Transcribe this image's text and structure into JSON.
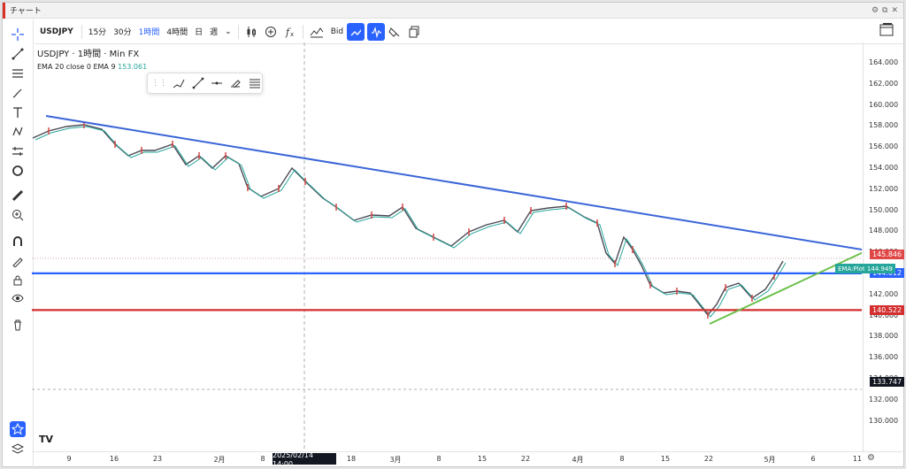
{
  "window": {
    "title": "チャート",
    "buttons": [
      "⚙",
      "⧉",
      "✕"
    ]
  },
  "toolbar": {
    "symbol": "USDJPY",
    "intervals": [
      {
        "label": "15分",
        "active": false
      },
      {
        "label": "30分",
        "active": false
      },
      {
        "label": "1時間",
        "active": true
      },
      {
        "label": "4時間",
        "active": false
      },
      {
        "label": "日",
        "active": false
      },
      {
        "label": "週",
        "active": false
      }
    ],
    "interval_menu": "⌄",
    "price_type": "Bid"
  },
  "legend": {
    "title": "USDJPY · 1時間 · Min FX",
    "indicator": "EMA 20 close 0 EMA 9",
    "indicator_value": "153.061"
  },
  "y_axis": {
    "ticks": [
      "164.000",
      "162.000",
      "160.000",
      "158.000",
      "156.000",
      "154.000",
      "152.000",
      "150.000",
      "148.000",
      "146.000",
      "144.000",
      "142.000",
      "140.000",
      "138.000",
      "136.000",
      "134.000",
      "132.000",
      "130.000"
    ]
  },
  "x_axis": {
    "ticks": [
      "9",
      "16",
      "23",
      "2月",
      "8",
      "18",
      "3月",
      "8",
      "15",
      "22",
      "4月",
      "8",
      "15",
      "22",
      "5月",
      "6",
      "11"
    ],
    "crosshair_label": "2025/02/14　14:00"
  },
  "price_labels": [
    {
      "value": "145.846",
      "color": "#e04848"
    },
    {
      "value": "144.012",
      "color": "#2962ff"
    },
    {
      "value": "140.522",
      "color": "#d32f2f"
    },
    {
      "value": "133.747",
      "color": "#131722"
    }
  ],
  "ema_label": {
    "name": "EMA:Plot",
    "value": "144.949"
  },
  "colors": {
    "trendline": "#3a65d8",
    "support_blue": "#2962ff",
    "support_red": "#d32f2f",
    "trendline_up": "#6cc04a",
    "ema": "#26a69a",
    "accent": "#2962ff"
  },
  "icons": {
    "left_toolbar": [
      "crosshair-icon",
      "trendline-icon",
      "horizontal-lines-icon",
      "brush-icon",
      "text-icon",
      "pattern-icon",
      "measure-icon",
      "circle-icon",
      "ruler-icon",
      "zoom-in-icon",
      "magnet-icon",
      "lock-drawings-icon",
      "lock-icon",
      "eye-icon",
      "trash-icon",
      "star-icon",
      "layers-icon"
    ]
  }
}
